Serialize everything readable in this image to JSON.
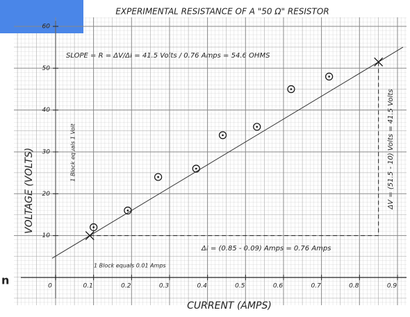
{
  "chart_data": {
    "type": "scatter",
    "title": "EXPERIMENTAL RESISTANCE OF A \"50 Ω\" RESISTOR",
    "x_label": "CURRENT (AMPS)",
    "y_label": "VOLTAGE (VOLTS)",
    "x": [
      0.1,
      0.19,
      0.27,
      0.37,
      0.44,
      0.53,
      0.62,
      0.72
    ],
    "values": [
      12,
      16,
      24,
      26,
      34,
      36,
      45,
      48
    ],
    "fit_line": {
      "x": [
        0.09,
        0.85
      ],
      "values": [
        10,
        51.5
      ]
    },
    "xlim": [
      0,
      0.9
    ],
    "ylim": [
      0,
      60
    ],
    "xticks": [
      0,
      0.1,
      0.2,
      0.3,
      0.4,
      0.5,
      0.6,
      0.7,
      0.8,
      0.9
    ],
    "yticks": [
      10,
      20,
      30,
      40,
      50,
      60
    ],
    "grid": true,
    "annotations": [
      "SLOPE = R = ΔV/ΔI = 41.5 Volts / 0.76 Amps = 54.6 OHMS",
      "ΔI = (0.85 - 0.09) Amps = 0.76 Amps",
      "ΔV = (51.5 - 10) Volts = 41.5 Volts",
      "1 Block equals 1 Volt",
      "1 Block equals 0.01 Amps"
    ]
  },
  "page_text": "n"
}
